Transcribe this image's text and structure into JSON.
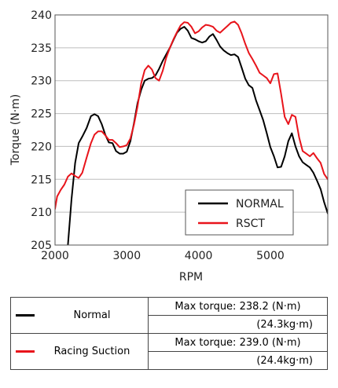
{
  "chart_data": {
    "type": "line",
    "xlabel": "RPM",
    "ylabel": "Torque (N·m)",
    "xlim": [
      2000,
      5800
    ],
    "ylim": [
      205,
      240
    ],
    "x_ticks": [
      2000,
      3000,
      4000,
      5000
    ],
    "y_ticks": [
      205,
      210,
      215,
      220,
      225,
      230,
      235,
      240
    ],
    "grid": "horizontal",
    "legend_position": "bottom-right",
    "series": [
      {
        "name": "NORMAL",
        "color": "#000000",
        "points": [
          [
            2180,
            205
          ],
          [
            2230,
            212
          ],
          [
            2280,
            217.5
          ],
          [
            2330,
            220.5
          ],
          [
            2380,
            221.5
          ],
          [
            2440,
            222.8
          ],
          [
            2500,
            224.6
          ],
          [
            2550,
            224.9
          ],
          [
            2600,
            224.6
          ],
          [
            2650,
            223.4
          ],
          [
            2700,
            221.8
          ],
          [
            2750,
            220.6
          ],
          [
            2800,
            220.5
          ],
          [
            2850,
            219.3
          ],
          [
            2900,
            218.9
          ],
          [
            2950,
            218.9
          ],
          [
            3000,
            219.2
          ],
          [
            3050,
            220.8
          ],
          [
            3100,
            223.5
          ],
          [
            3150,
            226.6
          ],
          [
            3200,
            228.6
          ],
          [
            3250,
            230.0
          ],
          [
            3300,
            230.3
          ],
          [
            3350,
            230.4
          ],
          [
            3400,
            230.8
          ],
          [
            3450,
            231.8
          ],
          [
            3500,
            233.0
          ],
          [
            3550,
            234.0
          ],
          [
            3600,
            235.0
          ],
          [
            3650,
            236.2
          ],
          [
            3700,
            237.3
          ],
          [
            3750,
            237.9
          ],
          [
            3800,
            238.2
          ],
          [
            3850,
            237.6
          ],
          [
            3900,
            236.5
          ],
          [
            3950,
            236.3
          ],
          [
            4000,
            236.0
          ],
          [
            4050,
            235.8
          ],
          [
            4100,
            236.0
          ],
          [
            4150,
            236.7
          ],
          [
            4200,
            237.1
          ],
          [
            4250,
            236.2
          ],
          [
            4300,
            235.2
          ],
          [
            4350,
            234.6
          ],
          [
            4400,
            234.2
          ],
          [
            4450,
            233.9
          ],
          [
            4500,
            234.0
          ],
          [
            4550,
            233.6
          ],
          [
            4600,
            232.0
          ],
          [
            4650,
            230.3
          ],
          [
            4700,
            229.3
          ],
          [
            4750,
            228.9
          ],
          [
            4800,
            227.0
          ],
          [
            4850,
            225.5
          ],
          [
            4900,
            224.0
          ],
          [
            4950,
            222.0
          ],
          [
            5000,
            219.9
          ],
          [
            5050,
            218.5
          ],
          [
            5100,
            216.8
          ],
          [
            5150,
            216.9
          ],
          [
            5200,
            218.5
          ],
          [
            5250,
            220.8
          ],
          [
            5300,
            222.0
          ],
          [
            5350,
            220.0
          ],
          [
            5400,
            218.5
          ],
          [
            5450,
            217.6
          ],
          [
            5500,
            217.2
          ],
          [
            5550,
            216.8
          ],
          [
            5600,
            216.0
          ],
          [
            5650,
            214.8
          ],
          [
            5700,
            213.5
          ],
          [
            5750,
            211.5
          ],
          [
            5800,
            209.8
          ]
        ]
      },
      {
        "name": "RSCT",
        "color": "#e8141b",
        "points": [
          [
            2000,
            210.5
          ],
          [
            2030,
            212.4
          ],
          [
            2080,
            213.4
          ],
          [
            2130,
            214.2
          ],
          [
            2180,
            215.4
          ],
          [
            2230,
            215.9
          ],
          [
            2280,
            215.5
          ],
          [
            2330,
            215.2
          ],
          [
            2380,
            216.0
          ],
          [
            2440,
            218.3
          ],
          [
            2500,
            220.5
          ],
          [
            2550,
            221.8
          ],
          [
            2600,
            222.3
          ],
          [
            2650,
            222.3
          ],
          [
            2700,
            221.7
          ],
          [
            2750,
            221.0
          ],
          [
            2800,
            221.0
          ],
          [
            2850,
            220.5
          ],
          [
            2900,
            219.9
          ],
          [
            2950,
            220.0
          ],
          [
            3000,
            220.2
          ],
          [
            3050,
            221.2
          ],
          [
            3100,
            223.3
          ],
          [
            3150,
            226.1
          ],
          [
            3200,
            229.6
          ],
          [
            3250,
            231.6
          ],
          [
            3300,
            232.3
          ],
          [
            3350,
            231.7
          ],
          [
            3400,
            230.4
          ],
          [
            3450,
            230.0
          ],
          [
            3500,
            231.5
          ],
          [
            3550,
            233.5
          ],
          [
            3600,
            235.0
          ],
          [
            3650,
            236.3
          ],
          [
            3700,
            237.4
          ],
          [
            3750,
            238.4
          ],
          [
            3800,
            238.9
          ],
          [
            3850,
            238.8
          ],
          [
            3900,
            238.2
          ],
          [
            3950,
            237.2
          ],
          [
            4000,
            237.5
          ],
          [
            4050,
            238.1
          ],
          [
            4100,
            238.5
          ],
          [
            4150,
            238.4
          ],
          [
            4200,
            238.2
          ],
          [
            4250,
            237.6
          ],
          [
            4300,
            237.3
          ],
          [
            4350,
            237.8
          ],
          [
            4400,
            238.3
          ],
          [
            4450,
            238.8
          ],
          [
            4500,
            239.0
          ],
          [
            4550,
            238.5
          ],
          [
            4600,
            237.2
          ],
          [
            4650,
            235.6
          ],
          [
            4700,
            234.2
          ],
          [
            4750,
            233.3
          ],
          [
            4800,
            232.3
          ],
          [
            4850,
            231.2
          ],
          [
            4900,
            230.8
          ],
          [
            4950,
            230.4
          ],
          [
            5000,
            229.6
          ],
          [
            5050,
            231.0
          ],
          [
            5100,
            231.1
          ],
          [
            5150,
            228.0
          ],
          [
            5200,
            224.5
          ],
          [
            5250,
            223.4
          ],
          [
            5300,
            224.8
          ],
          [
            5350,
            224.5
          ],
          [
            5400,
            221.4
          ],
          [
            5450,
            219.3
          ],
          [
            5500,
            218.9
          ],
          [
            5550,
            218.5
          ],
          [
            5600,
            219.0
          ],
          [
            5650,
            218.2
          ],
          [
            5700,
            217.5
          ],
          [
            5750,
            215.8
          ],
          [
            5800,
            215.0
          ]
        ]
      }
    ]
  },
  "summary_table": {
    "rows": [
      {
        "name": "Normal",
        "color": "#000000",
        "max_torque_label": "Max torque: 238.2 (N·m)",
        "kg_label": "(24.3kg·m)"
      },
      {
        "name": "Racing Suction",
        "color": "#e8141b",
        "max_torque_label": "Max torque: 239.0 (N·m)",
        "kg_label": "(24.4kg·m)"
      }
    ]
  }
}
